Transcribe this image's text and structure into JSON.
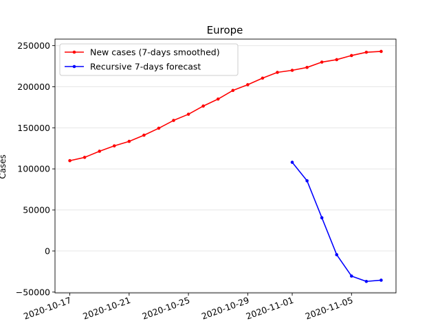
{
  "chart_data": {
    "type": "line",
    "title": "Europe",
    "xlabel": "",
    "ylabel": "Cases",
    "x_ticks": [
      "2020-10-17",
      "2020-10-21",
      "2020-10-25",
      "2020-10-29",
      "2020-11-01",
      "2020-11-05"
    ],
    "y_ticks": [
      -50000,
      0,
      50000,
      100000,
      150000,
      200000,
      250000
    ],
    "y_tick_labels": [
      "−50000",
      "0",
      "50000",
      "100000",
      "150000",
      "200000",
      "250000"
    ],
    "xlim": [
      "2020-10-16",
      "2020-11-08"
    ],
    "ylim": [
      -51000,
      258000
    ],
    "grid": "horizontal",
    "legend_position": "top-left",
    "series": [
      {
        "name": "New cases (7-days smoothed)",
        "color": "#ff0000",
        "x": [
          "2020-10-17",
          "2020-10-18",
          "2020-10-19",
          "2020-10-20",
          "2020-10-21",
          "2020-10-22",
          "2020-10-23",
          "2020-10-24",
          "2020-10-25",
          "2020-10-26",
          "2020-10-27",
          "2020-10-28",
          "2020-10-29",
          "2020-10-30",
          "2020-10-31",
          "2020-11-01",
          "2020-11-02",
          "2020-11-03",
          "2020-11-04",
          "2020-11-05",
          "2020-11-06",
          "2020-11-07"
        ],
        "values": [
          110000,
          114000,
          121500,
          128000,
          133500,
          141000,
          149500,
          159000,
          166500,
          176500,
          185000,
          195500,
          202500,
          210500,
          217500,
          220000,
          223500,
          230000,
          233000,
          238000,
          242000,
          243000
        ]
      },
      {
        "name": "Recursive 7-days forecast",
        "color": "#0000ff",
        "x": [
          "2020-11-01",
          "2020-11-02",
          "2020-11-03",
          "2020-11-04",
          "2020-11-05",
          "2020-11-06",
          "2020-11-07"
        ],
        "values": [
          108000,
          85500,
          40500,
          -4500,
          -30500,
          -37000,
          -35500
        ]
      }
    ]
  }
}
